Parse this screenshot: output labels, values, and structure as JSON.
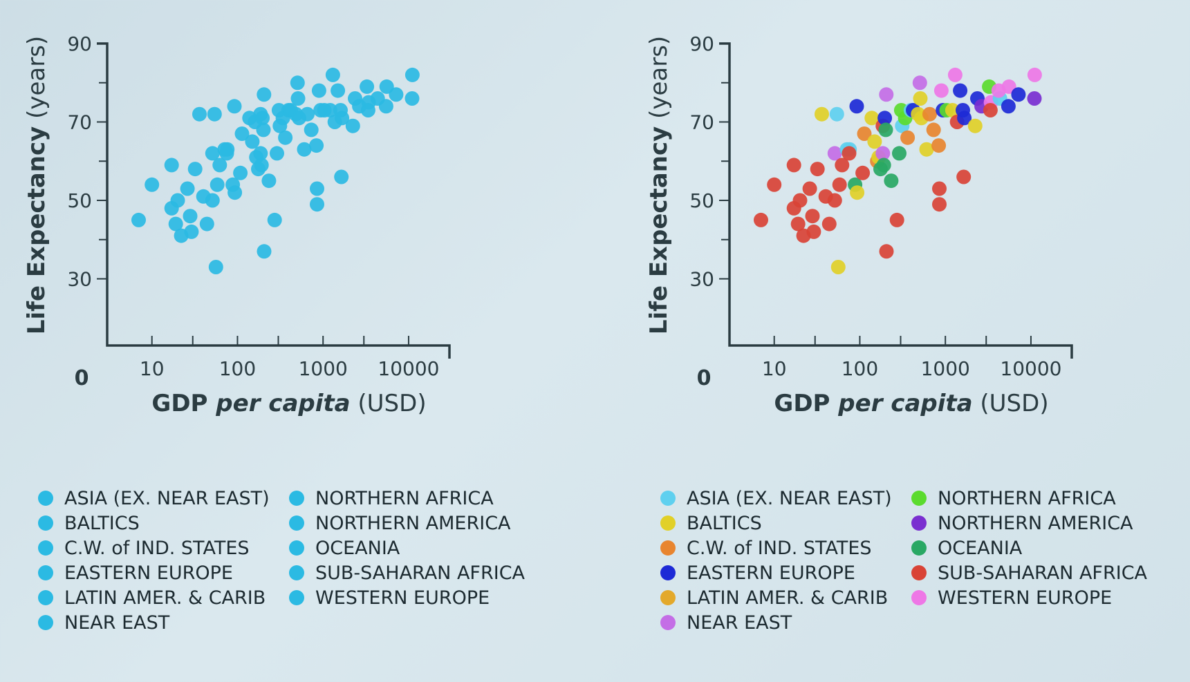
{
  "chart_data": [
    {
      "type": "scatter",
      "title": "",
      "xlabel": "GDP per capita (USD)",
      "xlabel_parts": [
        "GDP ",
        "per capita",
        " (USD)"
      ],
      "ylabel": "Life Expectancy (years)",
      "ylabel_parts": [
        "Life Expectancy",
        " (years)"
      ],
      "xscale": "log",
      "xlim": [
        3,
        30000
      ],
      "ylim": [
        13,
        90
      ],
      "xticks": [
        10,
        100,
        1000,
        10000
      ],
      "xtick_labels": [
        "10",
        "100",
        "1000",
        "10000"
      ],
      "yticks": [
        30,
        50,
        70,
        90
      ],
      "ytick_labels": [
        "30",
        "50",
        "70",
        "90"
      ],
      "origin_label": "0",
      "colored": false,
      "single_color": "#2bbae3",
      "points": [
        [
          7,
          45,
          "SSA"
        ],
        [
          10,
          54,
          "SSA"
        ],
        [
          17,
          48,
          "SSA"
        ],
        [
          17,
          59,
          "SSA"
        ],
        [
          19,
          44,
          "SSA"
        ],
        [
          20,
          50,
          "SSA"
        ],
        [
          22,
          41,
          "SSA"
        ],
        [
          26,
          53,
          "SSA"
        ],
        [
          28,
          46,
          "SSA"
        ],
        [
          29,
          42,
          "SSA"
        ],
        [
          32,
          58,
          "SSA"
        ],
        [
          40,
          51,
          "SSA"
        ],
        [
          44,
          44,
          "SSA"
        ],
        [
          51,
          62,
          "SSA"
        ],
        [
          51,
          50,
          "SSA"
        ],
        [
          58,
          54,
          "SSA"
        ],
        [
          62,
          59,
          "SSA"
        ],
        [
          56,
          33,
          "BAL"
        ],
        [
          36,
          72,
          "BAL"
        ],
        [
          54,
          72,
          "ASIA"
        ],
        [
          71,
          63,
          "OCE"
        ],
        [
          76,
          63,
          "ASIA"
        ],
        [
          75,
          62,
          "LAT"
        ],
        [
          88,
          54,
          "SSA"
        ],
        [
          93,
          52,
          "SSA"
        ],
        [
          92,
          74,
          "EEU"
        ],
        [
          108,
          57,
          "SSA"
        ],
        [
          113,
          67,
          "CIS"
        ],
        [
          138,
          71,
          "BAL"
        ],
        [
          149,
          65,
          "CIS"
        ],
        [
          160,
          70,
          "BAL"
        ],
        [
          166,
          61,
          "BAL"
        ],
        [
          175,
          58,
          "NEAR"
        ],
        [
          186,
          72,
          "OCE"
        ],
        [
          186,
          62,
          "CIS"
        ],
        [
          191,
          59,
          "OCE"
        ],
        [
          196,
          71,
          "EEU"
        ],
        [
          201,
          68,
          "NEAR"
        ],
        [
          205,
          37,
          "SSA"
        ],
        [
          204,
          77,
          "NEAR"
        ],
        [
          233,
          55,
          "OCE"
        ],
        [
          272,
          45,
          "SSA"
        ],
        [
          289,
          62,
          "OCE"
        ],
        [
          305,
          73,
          "NAF"
        ],
        [
          313,
          69,
          "ASIA"
        ],
        [
          339,
          71,
          "NAF"
        ],
        [
          362,
          66,
          "CIS"
        ],
        [
          396,
          73,
          "NEAR"
        ],
        [
          419,
          73,
          "OCE"
        ],
        [
          480,
          72,
          "NAF"
        ],
        [
          503,
          80,
          "NEAR"
        ],
        [
          510,
          76,
          "BAL"
        ],
        [
          524,
          71,
          "NAF"
        ],
        [
          603,
          63,
          "LAT"
        ],
        [
          656,
          72,
          "LAT"
        ],
        [
          729,
          68,
          "LAT"
        ],
        [
          851,
          53,
          "SSA"
        ],
        [
          850,
          49,
          "SSA"
        ],
        [
          837,
          64,
          "CIS"
        ],
        [
          897,
          78,
          "WEU"
        ],
        [
          936,
          73,
          "EEU"
        ],
        [
          1035,
          73,
          "NAF"
        ],
        [
          1208,
          73,
          "LAT"
        ],
        [
          1303,
          82,
          "WEU"
        ],
        [
          1371,
          70,
          "SSA"
        ],
        [
          1489,
          78,
          "EEU"
        ],
        [
          1601,
          73,
          "EEU"
        ],
        [
          1637,
          56,
          "SSA"
        ],
        [
          1665,
          71,
          "EEU"
        ],
        [
          2231,
          69,
          "LAT"
        ],
        [
          2366,
          76,
          "EEU"
        ],
        [
          2650,
          74,
          "NAM"
        ],
        [
          3253,
          79,
          "NAF"
        ],
        [
          3412,
          75,
          "WEU"
        ],
        [
          3363,
          73,
          "SSA"
        ],
        [
          4346,
          76,
          "ASIA"
        ],
        [
          5541,
          79,
          "WEU"
        ],
        [
          5453,
          74,
          "EEU"
        ],
        [
          7146,
          77,
          "EEU"
        ],
        [
          11057,
          82,
          "WEU"
        ],
        [
          10982,
          76,
          "NAM"
        ]
      ],
      "legend": [
        {
          "key": "ASIA",
          "label": "ASIA (EX. NEAR EAST)",
          "color": "#2bbae3"
        },
        {
          "key": "BAL",
          "label": "BALTICS",
          "color": "#2bbae3"
        },
        {
          "key": "CIS",
          "label": "C.W. of IND. STATES",
          "color": "#2bbae3"
        },
        {
          "key": "EEU",
          "label": "EASTERN EUROPE",
          "color": "#2bbae3"
        },
        {
          "key": "LAT",
          "label": "LATIN AMER. & CARIB",
          "color": "#2bbae3"
        },
        {
          "key": "NEAR",
          "label": "NEAR EAST",
          "color": "#2bbae3"
        },
        {
          "key": "NAF",
          "label": "NORTHERN AFRICA",
          "color": "#2bbae3"
        },
        {
          "key": "NAM",
          "label": "NORTHERN AMERICA",
          "color": "#2bbae3"
        },
        {
          "key": "OCE",
          "label": "OCEANIA",
          "color": "#2bbae3"
        },
        {
          "key": "SSA",
          "label": "SUB-SAHARAN AFRICA",
          "color": "#2bbae3"
        },
        {
          "key": "WEU",
          "label": "WESTERN EUROPE",
          "color": "#2bbae3"
        }
      ]
    },
    {
      "type": "scatter",
      "title": "",
      "xlabel": "GDP per capita (USD)",
      "xlabel_parts": [
        "GDP ",
        "per capita",
        " (USD)"
      ],
      "ylabel": "Life Expectancy (years)",
      "ylabel_parts": [
        "Life Expectancy",
        " (years)"
      ],
      "xscale": "log",
      "xlim": [
        3,
        30000
      ],
      "ylim": [
        13,
        90
      ],
      "xticks": [
        10,
        100,
        1000,
        10000
      ],
      "xtick_labels": [
        "10",
        "100",
        "1000",
        "10000"
      ],
      "yticks": [
        30,
        50,
        70,
        90
      ],
      "ytick_labels": [
        "30",
        "50",
        "70",
        "90"
      ],
      "origin_label": "0",
      "colored": true,
      "points": [
        [
          7,
          45,
          "SSA"
        ],
        [
          10,
          54,
          "SSA"
        ],
        [
          17,
          48,
          "SSA"
        ],
        [
          17,
          59,
          "SSA"
        ],
        [
          19,
          44,
          "SSA"
        ],
        [
          20,
          50,
          "SSA"
        ],
        [
          22,
          41,
          "SSA"
        ],
        [
          26,
          53,
          "SSA"
        ],
        [
          28,
          46,
          "SSA"
        ],
        [
          29,
          42,
          "SSA"
        ],
        [
          32,
          58,
          "SSA"
        ],
        [
          40,
          51,
          "SSA"
        ],
        [
          44,
          44,
          "SSA"
        ],
        [
          51,
          62,
          "NEAR"
        ],
        [
          51,
          50,
          "SSA"
        ],
        [
          58,
          54,
          "SSA"
        ],
        [
          62,
          59,
          "SSA"
        ],
        [
          56,
          33,
          "BAL"
        ],
        [
          36,
          72,
          "BAL"
        ],
        [
          54,
          72,
          "ASIA"
        ],
        [
          71,
          63,
          "ASIA"
        ],
        [
          76,
          63,
          "ASIA"
        ],
        [
          75,
          62,
          "SSA"
        ],
        [
          88,
          54,
          "OCE"
        ],
        [
          93,
          52,
          "BAL"
        ],
        [
          92,
          74,
          "EEU"
        ],
        [
          108,
          57,
          "SSA"
        ],
        [
          113,
          67,
          "CIS"
        ],
        [
          138,
          71,
          "BAL"
        ],
        [
          149,
          65,
          "BAL"
        ],
        [
          160,
          60,
          "CIS"
        ],
        [
          166,
          61,
          "BAL"
        ],
        [
          175,
          58,
          "OCE"
        ],
        [
          186,
          69,
          "SSA"
        ],
        [
          186,
          62,
          "NEAR"
        ],
        [
          191,
          59,
          "OCE"
        ],
        [
          196,
          71,
          "EEU"
        ],
        [
          201,
          68,
          "OCE"
        ],
        [
          205,
          37,
          "SSA"
        ],
        [
          204,
          77,
          "NEAR"
        ],
        [
          233,
          55,
          "OCE"
        ],
        [
          272,
          45,
          "SSA"
        ],
        [
          289,
          62,
          "OCE"
        ],
        [
          305,
          73,
          "NAF"
        ],
        [
          313,
          69,
          "ASIA"
        ],
        [
          339,
          71,
          "NAF"
        ],
        [
          362,
          66,
          "CIS"
        ],
        [
          396,
          73,
          "ASIA"
        ],
        [
          419,
          73,
          "EEU"
        ],
        [
          480,
          72,
          "BAL"
        ],
        [
          503,
          80,
          "NEAR"
        ],
        [
          510,
          76,
          "BAL"
        ],
        [
          524,
          71,
          "BAL"
        ],
        [
          603,
          63,
          "BAL"
        ],
        [
          656,
          72,
          "CIS"
        ],
        [
          729,
          68,
          "CIS"
        ],
        [
          851,
          53,
          "SSA"
        ],
        [
          850,
          49,
          "SSA"
        ],
        [
          837,
          64,
          "CIS"
        ],
        [
          897,
          78,
          "WEU"
        ],
        [
          936,
          73,
          "EEU"
        ],
        [
          1035,
          73,
          "NAF"
        ],
        [
          1208,
          73,
          "BAL"
        ],
        [
          1303,
          82,
          "WEU"
        ],
        [
          1371,
          70,
          "SSA"
        ],
        [
          1489,
          78,
          "EEU"
        ],
        [
          1601,
          73,
          "EEU"
        ],
        [
          1637,
          56,
          "SSA"
        ],
        [
          1665,
          71,
          "EEU"
        ],
        [
          2231,
          69,
          "BAL"
        ],
        [
          2366,
          76,
          "EEU"
        ],
        [
          2650,
          74,
          "NAM"
        ],
        [
          3253,
          79,
          "NAF"
        ],
        [
          3412,
          75,
          "WEU"
        ],
        [
          3363,
          73,
          "SSA"
        ],
        [
          4346,
          76,
          "ASIA"
        ],
        [
          4200,
          78,
          "WEU"
        ],
        [
          5541,
          79,
          "WEU"
        ],
        [
          5453,
          74,
          "EEU"
        ],
        [
          7146,
          77,
          "EEU"
        ],
        [
          11057,
          82,
          "WEU"
        ],
        [
          10982,
          76,
          "NAM"
        ]
      ],
      "legend": [
        {
          "key": "ASIA",
          "label": "ASIA (EX. NEAR EAST)",
          "color": "#5fd0ef"
        },
        {
          "key": "BAL",
          "label": "BALTICS",
          "color": "#e1d028"
        },
        {
          "key": "CIS",
          "label": "C.W. of IND. STATES",
          "color": "#e8852f"
        },
        {
          "key": "EEU",
          "label": "EASTERN EUROPE",
          "color": "#1d2ad6"
        },
        {
          "key": "LAT",
          "label": "LATIN AMER. & CARIB",
          "color": "#e3a92b"
        },
        {
          "key": "NEAR",
          "label": "NEAR EAST",
          "color": "#c46ee6"
        },
        {
          "key": "NAF",
          "label": "NORTHERN AFRICA",
          "color": "#5bdb2e"
        },
        {
          "key": "NAM",
          "label": "NORTHERN AMERICA",
          "color": "#7a2fd0"
        },
        {
          "key": "OCE",
          "label": "OCEANIA",
          "color": "#29a864"
        },
        {
          "key": "SSA",
          "label": "SUB-SAHARAN AFRICA",
          "color": "#d94336"
        },
        {
          "key": "WEU",
          "label": "WESTERN EUROPE",
          "color": "#ee77e6"
        }
      ]
    }
  ]
}
